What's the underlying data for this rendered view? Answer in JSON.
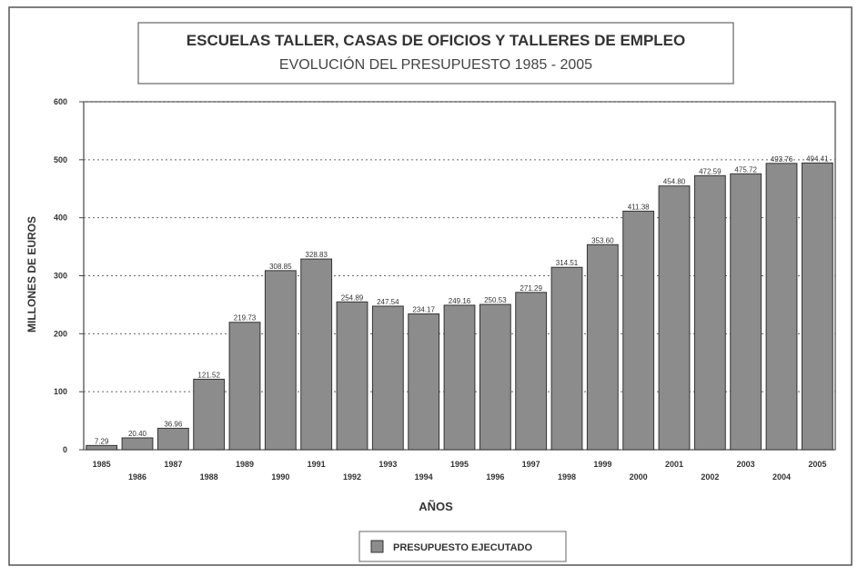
{
  "chart_data": {
    "type": "bar",
    "title": "ESCUELAS TALLER, CASAS DE OFICIOS Y TALLERES DE EMPLEO",
    "subtitle": "EVOLUCIÓN DEL PRESUPUESTO 1985 - 2005",
    "x_label": "AÑOS",
    "y_label": "MILLONES DE EUROS",
    "categories": [
      "1985",
      "1986",
      "1987",
      "1988",
      "1989",
      "1990",
      "1991",
      "1992",
      "1993",
      "1994",
      "1995",
      "1996",
      "1997",
      "1998",
      "1999",
      "2000",
      "2001",
      "2002",
      "2003",
      "2004",
      "2005"
    ],
    "series": [
      {
        "name": "PRESUPUESTO EJECUTADO",
        "color": "#8c8c8c",
        "values": [
          7.29,
          20.4,
          36.96,
          121.52,
          219.73,
          308.85,
          328.83,
          254.89,
          247.54,
          234.17,
          249.16,
          250.53,
          271.29,
          314.51,
          353.6,
          411.38,
          454.8,
          472.59,
          475.72,
          493.76,
          494.41
        ],
        "value_labels": [
          "7.29",
          "20.40",
          "36.96",
          "121.52",
          "219.73",
          "308.85",
          "328.83",
          "254.89",
          "247.54",
          "234.17",
          "249.16",
          "250.53",
          "271.29",
          "314.51",
          "353.60",
          "411.38",
          "454.80",
          "472.59",
          "475.72",
          "493.76",
          "494.41"
        ]
      }
    ],
    "ylim": [
      0,
      600
    ],
    "yticks": [
      0,
      100,
      200,
      300,
      400,
      500,
      600
    ],
    "grid": true
  }
}
